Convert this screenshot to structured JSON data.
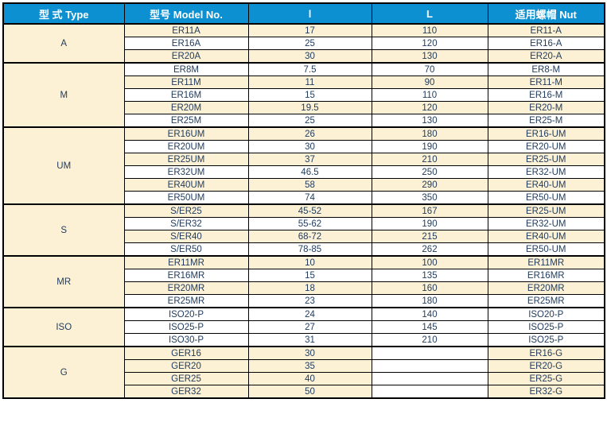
{
  "table": {
    "colors": {
      "header_bg": "#0C90D2",
      "row_beige": "#FCF1D4",
      "row_white": "#FFFFFF",
      "text": "#1F3A5C",
      "header_text": "#FFFFFF",
      "border": "#000000"
    },
    "columns": [
      {
        "label": "型 式 Type"
      },
      {
        "label": "型号 Model No."
      },
      {
        "label": "l"
      },
      {
        "label": "L"
      },
      {
        "label": "适用螺帽 Nut"
      }
    ],
    "groups": [
      {
        "type": "A",
        "rows": [
          {
            "model": "ER11A",
            "l": "17",
            "L": "110",
            "nut": "ER11-A",
            "shade": "beige"
          },
          {
            "model": "ER16A",
            "l": "25",
            "L": "120",
            "nut": "ER16-A",
            "shade": "white"
          },
          {
            "model": "ER20A",
            "l": "30",
            "L": "130",
            "nut": "ER20-A",
            "shade": "beige"
          }
        ]
      },
      {
        "type": "M",
        "rows": [
          {
            "model": "ER8M",
            "l": "7.5",
            "L": "70",
            "nut": "ER8-M",
            "shade": "white"
          },
          {
            "model": "ER11M",
            "l": "11",
            "L": "90",
            "nut": "ER11-M",
            "shade": "beige"
          },
          {
            "model": "ER16M",
            "l": "15",
            "L": "110",
            "nut": "ER16-M",
            "shade": "white"
          },
          {
            "model": "ER20M",
            "l": "19.5",
            "L": "120",
            "nut": "ER20-M",
            "shade": "beige"
          },
          {
            "model": "ER25M",
            "l": "25",
            "L": "130",
            "nut": "ER25-M",
            "shade": "white"
          }
        ]
      },
      {
        "type": "UM",
        "rows": [
          {
            "model": "ER16UM",
            "l": "26",
            "L": "180",
            "nut": "ER16-UM",
            "shade": "beige"
          },
          {
            "model": "ER20UM",
            "l": "30",
            "L": "190",
            "nut": "ER20-UM",
            "shade": "white"
          },
          {
            "model": "ER25UM",
            "l": "37",
            "L": "210",
            "nut": "ER25-UM",
            "shade": "beige"
          },
          {
            "model": "ER32UM",
            "l": "46.5",
            "L": "250",
            "nut": "ER32-UM",
            "shade": "white"
          },
          {
            "model": "ER40UM",
            "l": "58",
            "L": "290",
            "nut": "ER40-UM",
            "shade": "beige"
          },
          {
            "model": "ER50UM",
            "l": "74",
            "L": "350",
            "nut": "ER50-UM",
            "shade": "white"
          }
        ]
      },
      {
        "type": "S",
        "rows": [
          {
            "model": "S/ER25",
            "l": "45-52",
            "L": "167",
            "nut": "ER25-UM",
            "shade": "beige"
          },
          {
            "model": "S/ER32",
            "l": "55-62",
            "L": "190",
            "nut": "ER32-UM",
            "shade": "white"
          },
          {
            "model": "S/ER40",
            "l": "68-72",
            "L": "215",
            "nut": "ER40-UM",
            "shade": "beige"
          },
          {
            "model": "S/ER50",
            "l": "78-85",
            "L": "262",
            "nut": "ER50-UM",
            "shade": "white"
          }
        ]
      },
      {
        "type": "MR",
        "rows": [
          {
            "model": "ER11MR",
            "l": "10",
            "L": "100",
            "nut": "ER11MR",
            "shade": "beige"
          },
          {
            "model": "ER16MR",
            "l": "15",
            "L": "135",
            "nut": "ER16MR",
            "shade": "white"
          },
          {
            "model": "ER20MR",
            "l": "18",
            "L": "160",
            "nut": "ER20MR",
            "shade": "beige"
          },
          {
            "model": "ER25MR",
            "l": "23",
            "L": "180",
            "nut": "ER25MR",
            "shade": "white"
          }
        ]
      },
      {
        "type": "ISO",
        "rows": [
          {
            "model": "ISO20-P",
            "l": "24",
            "L": "140",
            "nut": "ISO20-P",
            "shade": "white"
          },
          {
            "model": "ISO25-P",
            "l": "27",
            "L": "145",
            "nut": "ISO25-P",
            "shade": "white"
          },
          {
            "model": "ISO30-P",
            "l": "31",
            "L": "210",
            "nut": "ISO25-P",
            "shade": "white"
          }
        ]
      },
      {
        "type": "G",
        "rows": [
          {
            "model": "GER16",
            "l": "30",
            "L": "",
            "nut": "ER16-G",
            "shade": "beige",
            "L_shade": "white"
          },
          {
            "model": "GER20",
            "l": "35",
            "L": "",
            "nut": "ER20-G",
            "shade": "beige",
            "L_shade": "white"
          },
          {
            "model": "GER25",
            "l": "40",
            "L": "",
            "nut": "ER25-G",
            "shade": "beige",
            "L_shade": "white"
          },
          {
            "model": "GER32",
            "l": "50",
            "L": "",
            "nut": "ER32-G",
            "shade": "beige",
            "L_shade": "white"
          }
        ]
      }
    ]
  }
}
